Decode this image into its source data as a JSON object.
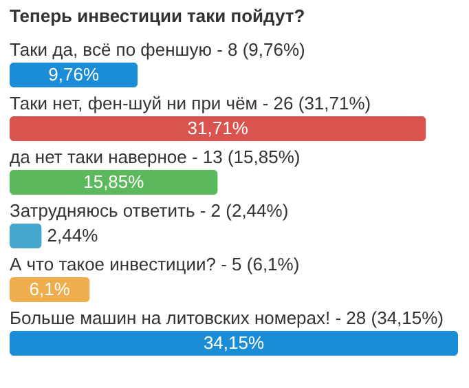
{
  "chart_data": {
    "type": "bar",
    "orientation": "horizontal",
    "title": "Теперь инвестиции таки пойдут?",
    "categories": [
      "Таки да, всё по феншую - 8 (9,76%)",
      "Таки нет, фен-шуй ни при чём - 26 (31,71%)",
      "да нет таки наверное - 13 (15,85%)",
      "Затрудняюсь ответить - 2 (2,44%)",
      "А что такое инвестиции? - 5 (6,1%)",
      "Больше машин на литовских номерах! - 28 (34,15%)"
    ],
    "values": [
      9.76,
      31.71,
      15.85,
      2.44,
      6.1,
      34.15
    ],
    "colors": [
      "#1b8dd6",
      "#d9534f",
      "#5cb85c",
      "#46a5cc",
      "#f0ad4e",
      "#1b8dd6"
    ],
    "value_labels": [
      "9,76%",
      "31,71%",
      "15,85%",
      "2,44%",
      "6,1%",
      "34,15%"
    ]
  }
}
